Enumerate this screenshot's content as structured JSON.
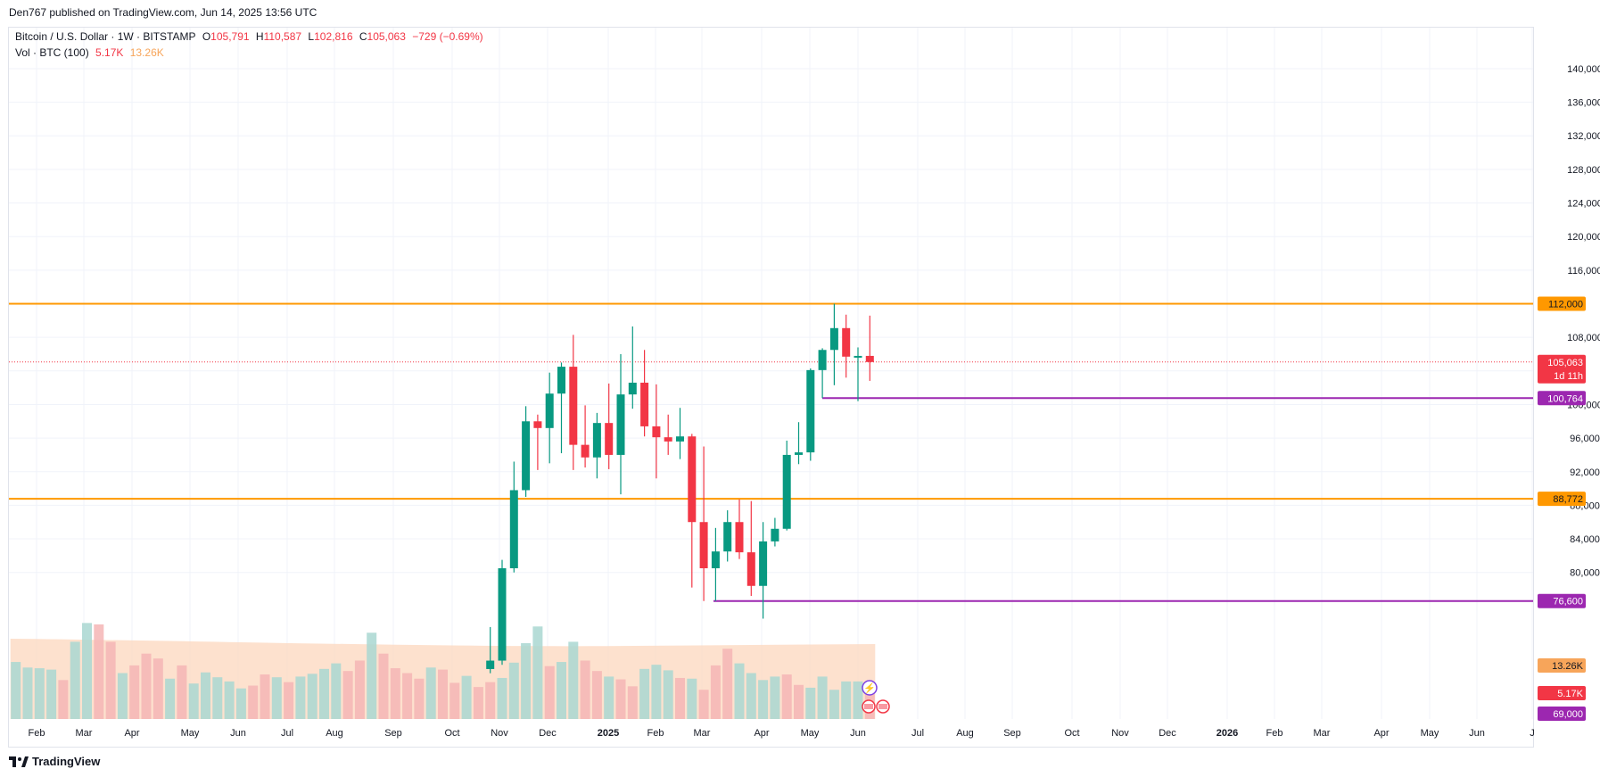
{
  "header": {
    "published": "Den767 published on TradingView.com, Jun 14, 2025 13:56 UTC"
  },
  "legend": {
    "symbol": "Bitcoin / U.S. Dollar · 1W · BITSTAMP",
    "o_label": "O",
    "o": "105,791",
    "h_label": "H",
    "h": "110,587",
    "l_label": "L",
    "l": "102,816",
    "c_label": "C",
    "c": "105,063",
    "change": "−729 (−0.69%)",
    "vol_label": "Vol · BTC (100)",
    "vol": "5.17K",
    "vol_ma": "13.26K"
  },
  "footer": {
    "brand": "TradingView"
  },
  "colors": {
    "up": "#089981",
    "down": "#f23645",
    "vol_up": "#a9d7d1",
    "vol_down": "#f5b5b5",
    "vol_ma_fill": "#fcd7bd",
    "hline_orange": "#ff9800",
    "hline_purple": "#9c27b0",
    "grid": "#f0f3fa"
  },
  "chart_data": {
    "type": "candlestick",
    "interval": "1W",
    "ylim": [
      68000,
      142000
    ],
    "y_ticks": [
      80000,
      84000,
      88000,
      92000,
      96000,
      100000,
      108000,
      116000,
      120000,
      124000,
      128000,
      132000,
      136000,
      140000
    ],
    "y_tick_labels": [
      "80,000",
      "84,000",
      "88,000",
      "92,000",
      "96,000",
      "100,000",
      "108,000",
      "116,000",
      "120,000",
      "124,000",
      "128,000",
      "132,000",
      "136,000",
      "140,000"
    ],
    "x_labels": [
      "Feb",
      "Mar",
      "Apr",
      "May",
      "Jun",
      "Jul",
      "Aug",
      "Sep",
      "Oct",
      "Nov",
      "Dec",
      "2025",
      "Feb",
      "Mar",
      "Apr",
      "May",
      "Jun",
      "Jul",
      "Aug",
      "Sep",
      "Oct",
      "Nov",
      "Dec",
      "2026",
      "Feb",
      "Mar",
      "Apr",
      "May",
      "Jun",
      "J"
    ],
    "candles": [
      {
        "x": "2024-10-28",
        "o": 68500,
        "h": 73500,
        "l": 68000,
        "c": 69500
      },
      {
        "x": "2024-11-04",
        "o": 69500,
        "h": 81500,
        "l": 69000,
        "c": 80500
      },
      {
        "x": "2024-11-11",
        "o": 80500,
        "h": 93200,
        "l": 80000,
        "c": 89800
      },
      {
        "x": "2024-11-18",
        "o": 89800,
        "h": 99800,
        "l": 89000,
        "c": 98000
      },
      {
        "x": "2024-11-25",
        "o": 98000,
        "h": 98800,
        "l": 92200,
        "c": 97200
      },
      {
        "x": "2024-12-02",
        "o": 97200,
        "h": 103800,
        "l": 93000,
        "c": 101300
      },
      {
        "x": "2024-12-09",
        "o": 101300,
        "h": 105000,
        "l": 94200,
        "c": 104500
      },
      {
        "x": "2024-12-16",
        "o": 104500,
        "h": 108300,
        "l": 92200,
        "c": 95200
      },
      {
        "x": "2024-12-23",
        "o": 95200,
        "h": 99900,
        "l": 92500,
        "c": 93700
      },
      {
        "x": "2024-12-30",
        "o": 93700,
        "h": 99000,
        "l": 91200,
        "c": 97800
      },
      {
        "x": "2025-01-06",
        "o": 97800,
        "h": 102500,
        "l": 92300,
        "c": 94000
      },
      {
        "x": "2025-01-13",
        "o": 94000,
        "h": 106000,
        "l": 89300,
        "c": 101200
      },
      {
        "x": "2025-01-20",
        "o": 101200,
        "h": 109300,
        "l": 99500,
        "c": 102600
      },
      {
        "x": "2025-01-27",
        "o": 102600,
        "h": 106500,
        "l": 96200,
        "c": 97400
      },
      {
        "x": "2025-02-03",
        "o": 97400,
        "h": 102400,
        "l": 91200,
        "c": 96100
      },
      {
        "x": "2025-02-10",
        "o": 96100,
        "h": 98800,
        "l": 94000,
        "c": 95600
      },
      {
        "x": "2025-02-17",
        "o": 95600,
        "h": 99600,
        "l": 93500,
        "c": 96200
      },
      {
        "x": "2025-02-24",
        "o": 96200,
        "h": 96500,
        "l": 78200,
        "c": 86000
      },
      {
        "x": "2025-03-03",
        "o": 86000,
        "h": 95000,
        "l": 76600,
        "c": 80500
      },
      {
        "x": "2025-03-10",
        "o": 80500,
        "h": 85300,
        "l": 76600,
        "c": 82500
      },
      {
        "x": "2025-03-17",
        "o": 82500,
        "h": 87400,
        "l": 81300,
        "c": 86000
      },
      {
        "x": "2025-03-24",
        "o": 86000,
        "h": 88700,
        "l": 81600,
        "c": 82400
      },
      {
        "x": "2025-03-31",
        "o": 82400,
        "h": 88500,
        "l": 77200,
        "c": 78400
      },
      {
        "x": "2025-04-07",
        "o": 78400,
        "h": 86000,
        "l": 74500,
        "c": 83700
      },
      {
        "x": "2025-04-14",
        "o": 83700,
        "h": 86500,
        "l": 83100,
        "c": 85200
      },
      {
        "x": "2025-04-21",
        "o": 85200,
        "h": 95700,
        "l": 85000,
        "c": 94000
      },
      {
        "x": "2025-04-28",
        "o": 94000,
        "h": 97900,
        "l": 92900,
        "c": 94300
      },
      {
        "x": "2025-05-05",
        "o": 94300,
        "h": 104300,
        "l": 93300,
        "c": 104100
      },
      {
        "x": "2025-05-12",
        "o": 104100,
        "h": 106700,
        "l": 100764,
        "c": 106500
      },
      {
        "x": "2025-05-19",
        "o": 106500,
        "h": 112000,
        "l": 102300,
        "c": 109100
      },
      {
        "x": "2025-05-26",
        "o": 109100,
        "h": 110700,
        "l": 103200,
        "c": 105700
      },
      {
        "x": "2025-06-02",
        "o": 105700,
        "h": 106800,
        "l": 100400,
        "c": 105791
      },
      {
        "x": "2025-06-09",
        "o": 105791,
        "h": 110587,
        "l": 102816,
        "c": 105063
      }
    ],
    "volume_bars": [
      {
        "x": "2024-01-22",
        "up": true,
        "v": 0.82
      },
      {
        "x": "2024-01-29",
        "up": true,
        "v": 0.74
      },
      {
        "x": "2024-02-05",
        "up": true,
        "v": 0.73
      },
      {
        "x": "2024-02-12",
        "up": true,
        "v": 0.71
      },
      {
        "x": "2024-02-19",
        "up": false,
        "v": 0.56
      },
      {
        "x": "2024-02-26",
        "up": true,
        "v": 1.11
      },
      {
        "x": "2024-03-04",
        "up": true,
        "v": 1.38
      },
      {
        "x": "2024-03-11",
        "up": false,
        "v": 1.36
      },
      {
        "x": "2024-03-18",
        "up": false,
        "v": 1.11
      },
      {
        "x": "2024-03-25",
        "up": true,
        "v": 0.66
      },
      {
        "x": "2024-04-01",
        "up": false,
        "v": 0.77
      },
      {
        "x": "2024-04-08",
        "up": false,
        "v": 0.94
      },
      {
        "x": "2024-04-15",
        "up": false,
        "v": 0.87
      },
      {
        "x": "2024-04-22",
        "up": true,
        "v": 0.58
      },
      {
        "x": "2024-04-29",
        "up": false,
        "v": 0.77
      },
      {
        "x": "2024-05-06",
        "up": true,
        "v": 0.51
      },
      {
        "x": "2024-05-13",
        "up": true,
        "v": 0.67
      },
      {
        "x": "2024-05-20",
        "up": true,
        "v": 0.6
      },
      {
        "x": "2024-05-27",
        "up": true,
        "v": 0.54
      },
      {
        "x": "2024-06-03",
        "up": true,
        "v": 0.44
      },
      {
        "x": "2024-06-10",
        "up": false,
        "v": 0.48
      },
      {
        "x": "2024-06-17",
        "up": false,
        "v": 0.64
      },
      {
        "x": "2024-06-24",
        "up": true,
        "v": 0.6
      },
      {
        "x": "2024-07-01",
        "up": false,
        "v": 0.53
      },
      {
        "x": "2024-07-08",
        "up": true,
        "v": 0.61
      },
      {
        "x": "2024-07-15",
        "up": true,
        "v": 0.65
      },
      {
        "x": "2024-07-22",
        "up": true,
        "v": 0.72
      },
      {
        "x": "2024-07-29",
        "up": true,
        "v": 0.8
      },
      {
        "x": "2024-08-05",
        "up": false,
        "v": 0.69
      },
      {
        "x": "2024-08-12",
        "up": false,
        "v": 0.84
      },
      {
        "x": "2024-08-19",
        "up": true,
        "v": 1.24
      },
      {
        "x": "2024-08-26",
        "up": false,
        "v": 0.94
      },
      {
        "x": "2024-09-02",
        "up": false,
        "v": 0.73
      },
      {
        "x": "2024-09-09",
        "up": false,
        "v": 0.66
      },
      {
        "x": "2024-09-16",
        "up": false,
        "v": 0.58
      },
      {
        "x": "2024-09-23",
        "up": true,
        "v": 0.74
      },
      {
        "x": "2024-09-30",
        "up": false,
        "v": 0.71
      },
      {
        "x": "2024-10-07",
        "up": false,
        "v": 0.52
      },
      {
        "x": "2024-10-14",
        "up": true,
        "v": 0.62
      },
      {
        "x": "2024-10-21",
        "up": false,
        "v": 0.46
      },
      {
        "x": "2024-10-28",
        "up": false,
        "v": 0.53
      },
      {
        "x": "2024-11-04",
        "up": true,
        "v": 0.59
      },
      {
        "x": "2024-11-11",
        "up": true,
        "v": 0.81
      },
      {
        "x": "2024-11-18",
        "up": true,
        "v": 1.09
      },
      {
        "x": "2024-11-25",
        "up": true,
        "v": 1.33
      },
      {
        "x": "2024-12-02",
        "up": false,
        "v": 0.76
      },
      {
        "x": "2024-12-09",
        "up": true,
        "v": 0.82
      },
      {
        "x": "2024-12-16",
        "up": true,
        "v": 1.11
      },
      {
        "x": "2024-12-23",
        "up": false,
        "v": 0.84
      },
      {
        "x": "2024-12-30",
        "up": false,
        "v": 0.69
      },
      {
        "x": "2025-01-06",
        "up": true,
        "v": 0.61
      },
      {
        "x": "2025-01-13",
        "up": false,
        "v": 0.57
      },
      {
        "x": "2025-01-20",
        "up": false,
        "v": 0.47
      },
      {
        "x": "2025-01-27",
        "up": true,
        "v": 0.72
      },
      {
        "x": "2025-02-03",
        "up": true,
        "v": 0.78
      },
      {
        "x": "2025-02-10",
        "up": true,
        "v": 0.7
      },
      {
        "x": "2025-02-17",
        "up": false,
        "v": 0.59
      },
      {
        "x": "2025-02-24",
        "up": true,
        "v": 0.58
      },
      {
        "x": "2025-03-03",
        "up": false,
        "v": 0.42
      },
      {
        "x": "2025-03-10",
        "up": false,
        "v": 0.77
      },
      {
        "x": "2025-03-17",
        "up": false,
        "v": 1.01
      },
      {
        "x": "2025-03-24",
        "up": true,
        "v": 0.8
      },
      {
        "x": "2025-03-31",
        "up": true,
        "v": 0.66
      },
      {
        "x": "2025-04-07",
        "up": true,
        "v": 0.56
      },
      {
        "x": "2025-04-14",
        "up": true,
        "v": 0.61
      },
      {
        "x": "2025-04-21",
        "up": false,
        "v": 0.64
      },
      {
        "x": "2025-04-28",
        "up": false,
        "v": 0.49
      },
      {
        "x": "2025-05-05",
        "up": true,
        "v": 0.45
      },
      {
        "x": "2025-05-12",
        "up": true,
        "v": 0.61
      },
      {
        "x": "2025-05-19",
        "up": true,
        "v": 0.42
      },
      {
        "x": "2025-05-26",
        "up": true,
        "v": 0.54
      },
      {
        "x": "2025-06-02",
        "up": true,
        "v": 0.54
      },
      {
        "x": "2025-06-09",
        "up": false,
        "v": 0.53
      }
    ],
    "volume_ma": 13.26,
    "horizontal_lines": [
      {
        "price": 112000,
        "label": "112,000",
        "color": "#ff9800",
        "full": true
      },
      {
        "price": 88772,
        "label": "88,772",
        "color": "#ff9800",
        "full": true
      },
      {
        "price": 100764,
        "label": "100,764",
        "color": "#9c27b0",
        "full": false
      },
      {
        "price": 76600,
        "label": "76,600",
        "color": "#9c27b0",
        "full": false
      }
    ],
    "last_price": {
      "price": 105063,
      "label": "105,063",
      "countdown": "1d 11h"
    },
    "axis_badges": [
      {
        "label": "13.26K",
        "kind": "vol_ma"
      },
      {
        "label": "5.17K",
        "kind": "vol"
      },
      {
        "label": "69,000",
        "kind": "purple"
      }
    ]
  }
}
